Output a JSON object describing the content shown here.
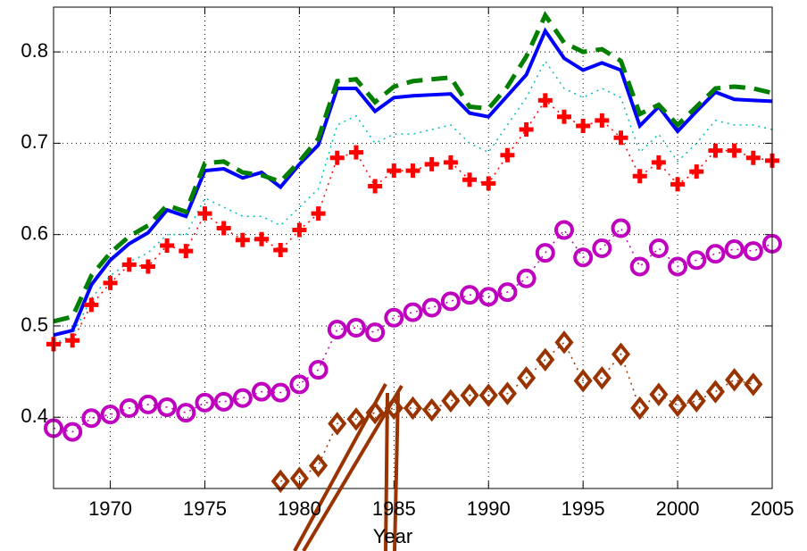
{
  "chart_data": {
    "type": "line",
    "x_label": "Year",
    "x": [
      1967,
      1968,
      1969,
      1970,
      1971,
      1972,
      1973,
      1974,
      1975,
      1976,
      1977,
      1978,
      1979,
      1980,
      1981,
      1982,
      1983,
      1984,
      1985,
      1986,
      1987,
      1988,
      1989,
      1990,
      1991,
      1992,
      1993,
      1994,
      1995,
      1996,
      1997,
      1998,
      1999,
      2000,
      2001,
      2002,
      2003,
      2004,
      2005
    ],
    "xlim": [
      1967,
      2005
    ],
    "xticks": [
      1970,
      1975,
      1980,
      1985,
      1990,
      1995,
      2000,
      2005
    ],
    "ylim": [
      0.322,
      0.849
    ],
    "yticks": [
      0.4,
      0.5,
      0.6,
      0.7,
      0.8
    ],
    "grid": true,
    "series": [
      {
        "color": "#0000ff",
        "line": "solid",
        "width": 4,
        "marker": null,
        "values": [
          0.49,
          0.495,
          0.545,
          0.572,
          0.59,
          0.602,
          0.627,
          0.62,
          0.67,
          0.672,
          0.662,
          0.668,
          0.652,
          0.677,
          0.698,
          0.76,
          0.76,
          0.735,
          0.75,
          0.752,
          0.753,
          0.754,
          0.733,
          0.729,
          0.752,
          0.775,
          0.823,
          0.793,
          0.78,
          0.788,
          0.78,
          0.719,
          0.74,
          0.713,
          0.735,
          0.756,
          0.748,
          0.747,
          0.746
        ]
      },
      {
        "color": "#007f00",
        "line": "dashed",
        "width": 5,
        "marker": null,
        "values": [
          0.505,
          0.51,
          0.555,
          0.58,
          0.598,
          0.61,
          0.632,
          0.625,
          0.678,
          0.68,
          0.668,
          0.665,
          0.658,
          0.68,
          0.705,
          0.768,
          0.77,
          0.745,
          0.762,
          0.768,
          0.77,
          0.772,
          0.74,
          0.738,
          0.762,
          0.795,
          0.84,
          0.81,
          0.8,
          0.803,
          0.79,
          0.732,
          0.742,
          0.72,
          0.74,
          0.76,
          0.762,
          0.76,
          0.755
        ]
      },
      {
        "color": "#00bfbf",
        "line": "dotted",
        "width": 1.5,
        "marker": null,
        "values": [
          0.48,
          0.49,
          0.53,
          0.555,
          0.57,
          0.58,
          0.6,
          0.6,
          0.64,
          0.63,
          0.62,
          0.62,
          0.61,
          0.63,
          0.65,
          0.72,
          0.73,
          0.7,
          0.71,
          0.71,
          0.715,
          0.72,
          0.7,
          0.69,
          0.72,
          0.75,
          0.79,
          0.76,
          0.75,
          0.76,
          0.75,
          0.69,
          0.71,
          0.68,
          0.7,
          0.725,
          0.72,
          0.72,
          0.715
        ]
      },
      {
        "color": "#ff0000",
        "line": "dotted",
        "width": 1.5,
        "marker": "plus",
        "values": [
          0.48,
          0.484,
          0.523,
          0.547,
          0.567,
          0.565,
          0.588,
          0.582,
          0.623,
          0.607,
          0.594,
          0.595,
          0.583,
          0.605,
          0.623,
          0.684,
          0.69,
          0.653,
          0.67,
          0.67,
          0.677,
          0.679,
          0.66,
          0.656,
          0.687,
          0.715,
          0.747,
          0.729,
          0.719,
          0.725,
          0.706,
          0.664,
          0.679,
          0.655,
          0.669,
          0.692,
          0.692,
          0.684,
          0.681
        ]
      },
      {
        "color": "#bf00bf",
        "line": "dotted",
        "width": 1.5,
        "marker": "circle",
        "values": [
          0.388,
          0.384,
          0.399,
          0.403,
          0.41,
          0.414,
          0.411,
          0.405,
          0.416,
          0.417,
          0.421,
          0.428,
          0.427,
          0.436,
          0.452,
          0.496,
          0.498,
          0.493,
          0.509,
          0.515,
          0.52,
          0.527,
          0.534,
          0.532,
          0.537,
          0.552,
          0.58,
          0.605,
          0.575,
          0.585,
          0.607,
          0.565,
          0.585,
          0.565,
          0.572,
          0.579,
          0.584,
          0.582,
          0.59
        ]
      },
      {
        "color": "#993300",
        "line": "dotted",
        "width": 1.5,
        "marker": "diamond",
        "values": [
          null,
          null,
          null,
          null,
          null,
          null,
          null,
          null,
          null,
          null,
          null,
          null,
          0.33,
          0.333,
          0.347,
          0.393,
          0.398,
          0.405,
          0.41,
          0.41,
          0.408,
          0.418,
          0.424,
          0.424,
          0.426,
          0.443,
          0.463,
          0.482,
          0.44,
          0.443,
          0.469,
          0.41,
          0.425,
          0.413,
          0.418,
          0.428,
          0.441,
          0.436,
          null
        ]
      }
    ]
  }
}
